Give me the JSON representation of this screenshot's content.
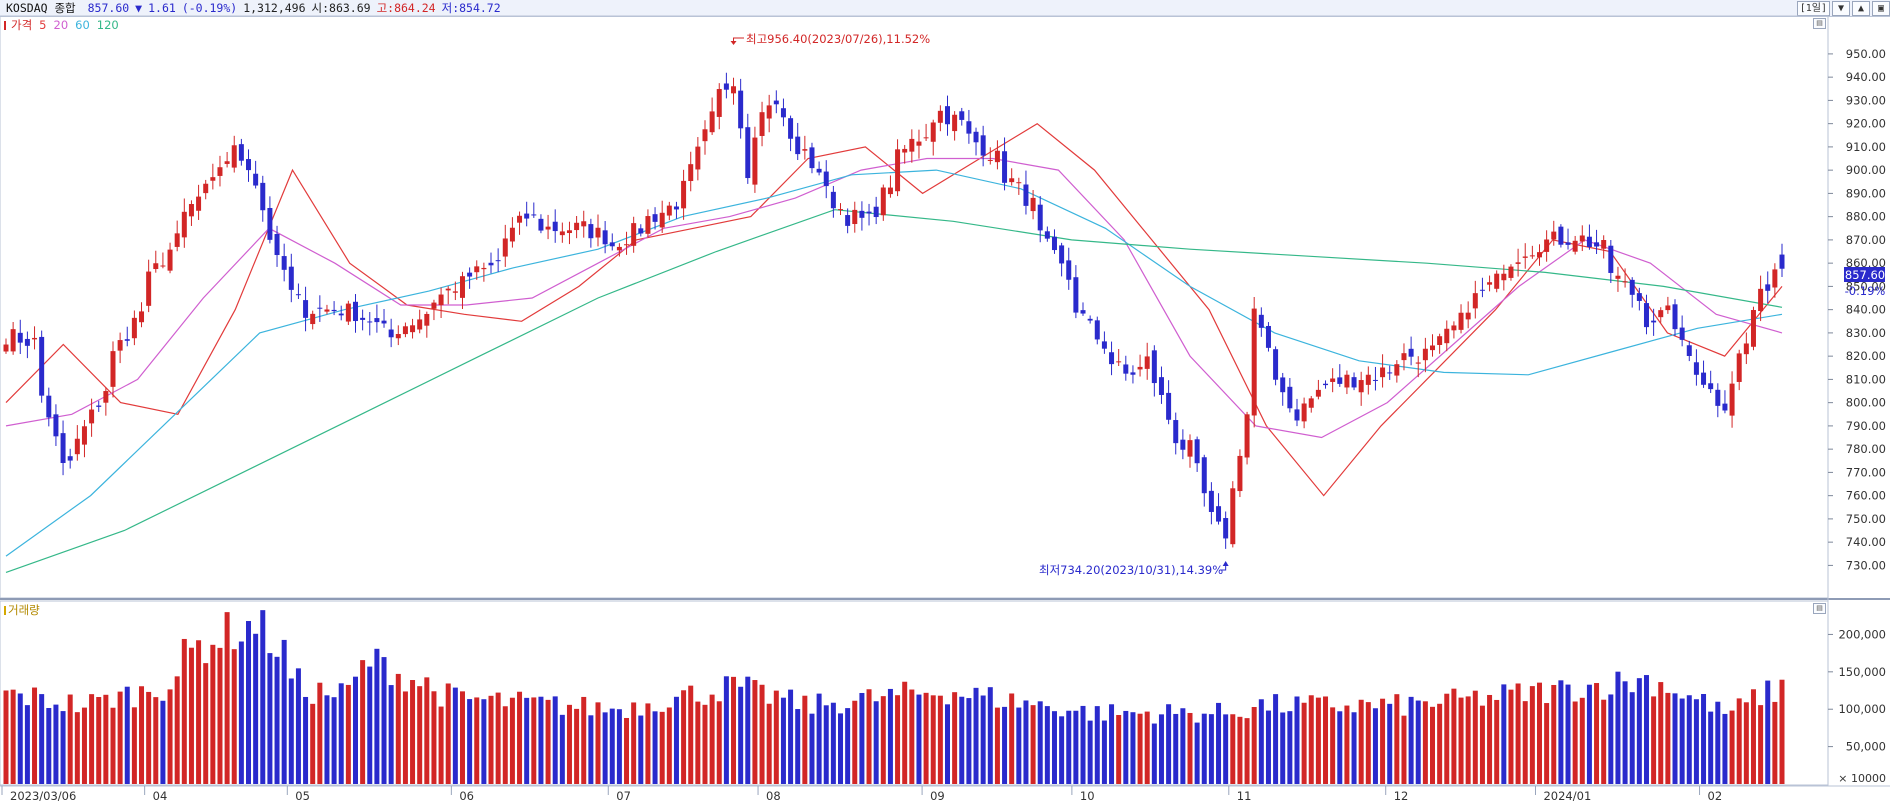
{
  "header": {
    "name": "KOSDAQ 종합",
    "price": "857.60",
    "change_arrow": "▼",
    "change": "1.61",
    "change_pct": "(-0.19%)",
    "volume": "1,312,496",
    "open": "시:863.69",
    "high": "고:864.24",
    "low": "저:854.72",
    "period": "[1일]",
    "win_buttons": [
      "▼",
      "▲",
      "▣"
    ]
  },
  "legend": {
    "price": "가격",
    "ma5": "5",
    "ma20": "20",
    "ma60": "60",
    "ma120": "120",
    "volume": "거래량"
  },
  "price_badge": {
    "value": "857.60",
    "pct": "-0.19%"
  },
  "annotations": {
    "high": "최고956.40(2023/07/26),11.52%",
    "low": "최저734.20(2023/10/31),14.39%"
  },
  "colors": {
    "up": "#d22626",
    "down": "#2a2acc",
    "ma5": "#e23b3b",
    "ma20": "#d05fd0",
    "ma60": "#3cb4dd",
    "ma120": "#35b889"
  },
  "chart_data": [
    {
      "type": "candlestick",
      "title": "KOSDAQ 종합",
      "ylim": [
        722,
        962
      ],
      "y_ticks": [
        730,
        740,
        750,
        760,
        770,
        780,
        790,
        800,
        810,
        820,
        830,
        840,
        850,
        860,
        870,
        880,
        890,
        900,
        910,
        920,
        930,
        940,
        950
      ],
      "x_labels": [
        "2023/03/06",
        "04",
        "05",
        "06",
        "07",
        "08",
        "09",
        "10",
        "11",
        "12",
        "2024/01",
        "02"
      ],
      "anchors": [
        {
          "date": "2023-03-06",
          "close": 829
        },
        {
          "date": "2023-03-10",
          "close": 826
        },
        {
          "date": "2023-03-14",
          "close": 795
        },
        {
          "date": "2023-03-16",
          "close": 772
        },
        {
          "date": "2023-03-20",
          "close": 783
        },
        {
          "date": "2023-03-24",
          "close": 806
        },
        {
          "date": "2023-03-30",
          "close": 835
        },
        {
          "date": "2023-04-05",
          "close": 862
        },
        {
          "date": "2023-04-12",
          "close": 888
        },
        {
          "date": "2023-04-19",
          "close": 908
        },
        {
          "date": "2023-04-24",
          "close": 895
        },
        {
          "date": "2023-04-27",
          "close": 860
        },
        {
          "date": "2023-05-03",
          "close": 840
        },
        {
          "date": "2023-05-10",
          "close": 840
        },
        {
          "date": "2023-05-16",
          "close": 836
        },
        {
          "date": "2023-05-19",
          "close": 828
        },
        {
          "date": "2023-05-24",
          "close": 835
        },
        {
          "date": "2023-06-01",
          "close": 850
        },
        {
          "date": "2023-06-08",
          "close": 858
        },
        {
          "date": "2023-06-15",
          "close": 880
        },
        {
          "date": "2023-06-20",
          "close": 875
        },
        {
          "date": "2023-06-27",
          "close": 875
        },
        {
          "date": "2023-07-03",
          "close": 868
        },
        {
          "date": "2023-07-07",
          "close": 875
        },
        {
          "date": "2023-07-12",
          "close": 882
        },
        {
          "date": "2023-07-17",
          "close": 892
        },
        {
          "date": "2023-07-21",
          "close": 922
        },
        {
          "date": "2023-07-26",
          "close": 940
        },
        {
          "date": "2023-07-28",
          "close": 900
        },
        {
          "date": "2023-08-02",
          "close": 930
        },
        {
          "date": "2023-08-07",
          "close": 912
        },
        {
          "date": "2023-08-11",
          "close": 900
        },
        {
          "date": "2023-08-17",
          "close": 880
        },
        {
          "date": "2023-08-22",
          "close": 878
        },
        {
          "date": "2023-08-25",
          "close": 895
        },
        {
          "date": "2023-08-30",
          "close": 912
        },
        {
          "date": "2023-09-05",
          "close": 925
        },
        {
          "date": "2023-09-08",
          "close": 920
        },
        {
          "date": "2023-09-13",
          "close": 910
        },
        {
          "date": "2023-09-19",
          "close": 895
        },
        {
          "date": "2023-09-22",
          "close": 885
        },
        {
          "date": "2023-09-27",
          "close": 862
        },
        {
          "date": "2023-10-05",
          "close": 828
        },
        {
          "date": "2023-10-11",
          "close": 812
        },
        {
          "date": "2023-10-16",
          "close": 818
        },
        {
          "date": "2023-10-20",
          "close": 785
        },
        {
          "date": "2023-10-24",
          "close": 780
        },
        {
          "date": "2023-10-27",
          "close": 750
        },
        {
          "date": "2023-10-31",
          "close": 744
        },
        {
          "date": "2023-11-02",
          "close": 780
        },
        {
          "date": "2023-11-06",
          "close": 840
        },
        {
          "date": "2023-11-09",
          "close": 810
        },
        {
          "date": "2023-11-14",
          "close": 795
        },
        {
          "date": "2023-11-17",
          "close": 805
        },
        {
          "date": "2023-11-23",
          "close": 810
        },
        {
          "date": "2023-11-29",
          "close": 812
        },
        {
          "date": "2023-12-05",
          "close": 820
        },
        {
          "date": "2023-12-11",
          "close": 822
        },
        {
          "date": "2023-12-15",
          "close": 835
        },
        {
          "date": "2023-12-21",
          "close": 850
        },
        {
          "date": "2023-12-28",
          "close": 866
        },
        {
          "date": "2024-01-03",
          "close": 870
        },
        {
          "date": "2024-01-08",
          "close": 872
        },
        {
          "date": "2024-01-12",
          "close": 866
        },
        {
          "date": "2024-01-17",
          "close": 850
        },
        {
          "date": "2024-01-22",
          "close": 836
        },
        {
          "date": "2024-01-25",
          "close": 838
        },
        {
          "date": "2024-01-30",
          "close": 820
        },
        {
          "date": "2024-02-02",
          "close": 805
        },
        {
          "date": "2024-02-06",
          "close": 800
        },
        {
          "date": "2024-02-08",
          "close": 820
        },
        {
          "date": "2024-02-13",
          "close": 845
        },
        {
          "date": "2024-02-15",
          "close": 858
        },
        {
          "date": "2024-02-16",
          "close": 857.6
        }
      ],
      "moving_averages": [
        {
          "name": "5",
          "values": [
            800,
            825,
            800,
            795,
            840,
            900,
            860,
            842,
            838,
            835,
            850,
            870,
            875,
            880,
            905,
            910,
            890,
            905,
            920,
            900,
            870,
            840,
            790,
            760,
            790,
            815,
            840,
            870,
            865,
            830,
            820,
            850
          ]
        },
        {
          "name": "20",
          "values": [
            790,
            795,
            810,
            845,
            875,
            860,
            842,
            842,
            845,
            860,
            875,
            880,
            888,
            900,
            905,
            905,
            900,
            870,
            820,
            790,
            785,
            800,
            825,
            850,
            870,
            860,
            838,
            830
          ]
        },
        {
          "name": "60",
          "values": [
            734,
            760,
            795,
            830,
            840,
            848,
            858,
            866,
            880,
            888,
            898,
            900,
            892,
            875,
            850,
            830,
            818,
            813,
            812,
            822,
            832,
            838
          ]
        },
        {
          "name": "120",
          "values": [
            727,
            745,
            770,
            795,
            820,
            845,
            865,
            883,
            878,
            870,
            866,
            863,
            860,
            856,
            850,
            841
          ]
        }
      ]
    },
    {
      "type": "bar",
      "title": "거래량",
      "unit": "× 10000",
      "ylim": [
        0,
        230000
      ],
      "y_ticks": [
        50000,
        100000,
        150000,
        200000
      ],
      "anchors": [
        {
          "date": "2023-03-06",
          "value": 120000
        },
        {
          "date": "2023-03-20",
          "value": 105000
        },
        {
          "date": "2023-04-05",
          "value": 130000
        },
        {
          "date": "2023-04-12",
          "value": 185000
        },
        {
          "date": "2023-04-19",
          "value": 205000
        },
        {
          "date": "2023-04-24",
          "value": 215000
        },
        {
          "date": "2023-05-03",
          "value": 125000
        },
        {
          "date": "2023-05-10",
          "value": 120000
        },
        {
          "date": "2023-05-16",
          "value": 165000
        },
        {
          "date": "2023-06-01",
          "value": 115000
        },
        {
          "date": "2023-07-03",
          "value": 100000
        },
        {
          "date": "2023-07-26",
          "value": 130000
        },
        {
          "date": "2023-08-10",
          "value": 105000
        },
        {
          "date": "2023-09-05",
          "value": 125000
        },
        {
          "date": "2023-10-05",
          "value": 95000
        },
        {
          "date": "2023-10-31",
          "value": 95000
        },
        {
          "date": "2023-11-06",
          "value": 105000
        },
        {
          "date": "2023-12-05",
          "value": 105000
        },
        {
          "date": "2024-01-03",
          "value": 125000
        },
        {
          "date": "2024-01-22",
          "value": 140000
        },
        {
          "date": "2024-02-06",
          "value": 95000
        },
        {
          "date": "2024-02-16",
          "value": 128000
        }
      ]
    }
  ]
}
